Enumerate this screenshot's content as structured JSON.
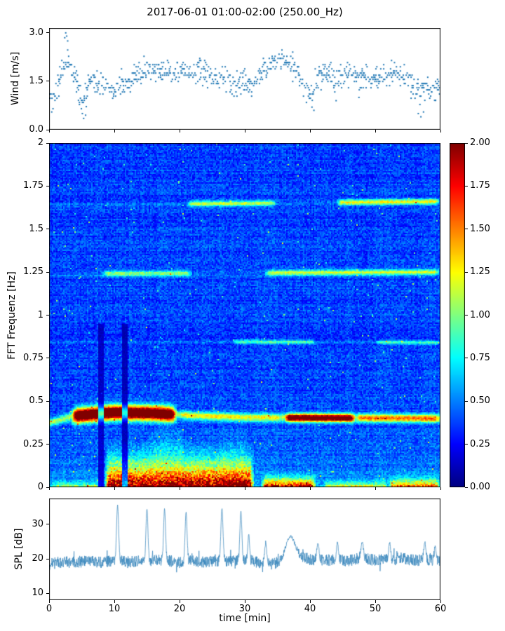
{
  "title": "2017-06-01 01:00-02:00 (250.00_Hz)",
  "chart_data": [
    {
      "type": "scatter",
      "ylabel": "Wind [m/s]",
      "xlim": [
        0,
        60
      ],
      "ylim": [
        0,
        3.15
      ],
      "yticks": [
        0,
        1.5,
        3
      ],
      "ytick_labels": [
        "0.0",
        "1.5",
        "3.0"
      ],
      "color": "#1f77b4",
      "column_step": 0.15,
      "spread": 0.19,
      "quantize": 0.065,
      "trend_x_step": 1,
      "trend_y": [
        0.9,
        1.2,
        1.8,
        2.2,
        1.6,
        0.9,
        1.3,
        1.5,
        1.4,
        1.3,
        1.2,
        1.3,
        1.4,
        1.6,
        1.8,
        1.8,
        1.9,
        1.8,
        1.8,
        1.7,
        1.8,
        1.8,
        1.7,
        1.8,
        1.8,
        1.7,
        1.6,
        1.5,
        1.5,
        1.4,
        1.5,
        1.4,
        1.6,
        1.9,
        2.0,
        2.2,
        2.1,
        2.0,
        1.9,
        1.4,
        1.0,
        1.6,
        1.8,
        1.7,
        1.6,
        1.7,
        1.6,
        1.7,
        1.6,
        1.7,
        1.6,
        1.7,
        1.6,
        1.8,
        1.7,
        1.6,
        1.3,
        1.2,
        1.3,
        1.2,
        1.3
      ],
      "outliers": [
        [
          2.4,
          2.85
        ],
        [
          2.55,
          3.0
        ],
        [
          2.7,
          2.9
        ],
        [
          2.85,
          2.75
        ],
        [
          5.1,
          0.5
        ],
        [
          5.3,
          0.35
        ],
        [
          5.6,
          0.45
        ],
        [
          0.4,
          0.55
        ],
        [
          40.3,
          0.7
        ],
        [
          40.6,
          0.6
        ],
        [
          56.6,
          0.5
        ],
        [
          57.0,
          0.4
        ],
        [
          57.4,
          0.55
        ],
        [
          44.0,
          0.9
        ],
        [
          47.5,
          1.0
        ]
      ]
    },
    {
      "type": "heatmap",
      "ylabel": "FFT Frequenz [Hz]",
      "xlim": [
        0,
        60
      ],
      "ylim": [
        0,
        2
      ],
      "clim": [
        0,
        2
      ],
      "colormap": "jet",
      "yticks": [
        0,
        0.25,
        0.5,
        0.75,
        1,
        1.25,
        1.5,
        1.75,
        2
      ],
      "ytick_labels": [
        "0",
        "0.25",
        "0.5",
        "0.75",
        "1",
        "1.25",
        "1.5",
        "1.75",
        "2"
      ],
      "colorbar_ticks": [
        0,
        0.25,
        0.5,
        0.75,
        1,
        1.25,
        1.5,
        1.75,
        2
      ],
      "colorbar_tick_labels": [
        "0.00",
        "0.25",
        "0.50",
        "0.75",
        "1.00",
        "1.25",
        "1.50",
        "1.75",
        "2.00"
      ],
      "background": {
        "base": 0.16,
        "row_amp": 0.1,
        "col_amp": 0.06,
        "cell_amp": 0.26,
        "low_boost": 0.2,
        "low_scale": 0.18,
        "speckle_prob": 0.004,
        "speckle_amp": 0.55
      },
      "hlines": [
        {
          "points": [
            [
              0,
              0.375
            ],
            [
              4,
              0.415
            ],
            [
              10,
              0.435
            ],
            [
              16,
              0.43
            ],
            [
              22,
              0.415
            ],
            [
              30,
              0.405
            ],
            [
              60,
              0.4
            ]
          ],
          "width": 0.016,
          "intensity": 0.7,
          "hot": [
            {
              "t0": 3.5,
              "t1": 19.5,
              "intensity": 1.6,
              "width": 0.028
            },
            {
              "t0": 20,
              "t1": 36,
              "intensity": 0.2,
              "width": 0.014
            },
            {
              "t0": 36,
              "t1": 47,
              "intensity": 1.3,
              "width": 0.012
            },
            {
              "t0": 47,
              "t1": 60,
              "intensity": 0.5,
              "width": 0.012
            }
          ]
        },
        {
          "points": [
            [
              0,
              1.24
            ],
            [
              60,
              1.25
            ]
          ],
          "width": 0.011,
          "intensity": 0.12,
          "hot": [
            {
              "t0": 8,
              "t1": 22,
              "intensity": 0.6,
              "width": 0.011
            },
            {
              "t0": 33,
              "t1": 60,
              "intensity": 0.75,
              "width": 0.011
            }
          ]
        },
        {
          "points": [
            [
              0,
              1.64
            ],
            [
              60,
              1.66
            ]
          ],
          "width": 0.011,
          "intensity": 0.1,
          "hot": [
            {
              "t0": 21,
              "t1": 35,
              "intensity": 0.7,
              "width": 0.011
            },
            {
              "t0": 44,
              "t1": 60,
              "intensity": 0.85,
              "width": 0.011
            }
          ]
        },
        {
          "points": [
            [
              0,
              0.85
            ],
            [
              60,
              0.84
            ]
          ],
          "width": 0.009,
          "intensity": 0.05,
          "hot": [
            {
              "t0": 28,
              "t1": 41,
              "intensity": 0.45,
              "width": 0.009
            },
            {
              "t0": 50,
              "t1": 60,
              "intensity": 0.4,
              "width": 0.009
            }
          ]
        }
      ],
      "low_band": [
        {
          "t0": 0,
          "t1": 8,
          "f_top": 0.05,
          "peak": 0.8
        },
        {
          "t0": 8.5,
          "t1": 31.5,
          "f_top": 0.3,
          "peak": 2.0
        },
        {
          "t0": 15,
          "t1": 21,
          "f_top": 0.38,
          "peak": 1.5
        },
        {
          "t0": 26,
          "t1": 30.5,
          "f_top": 0.34,
          "peak": 1.7
        },
        {
          "t0": 32.5,
          "t1": 41,
          "f_top": 0.1,
          "peak": 1.9
        },
        {
          "t0": 42,
          "t1": 52,
          "f_top": 0.06,
          "peak": 1.0
        },
        {
          "t0": 52,
          "t1": 60,
          "f_top": 0.09,
          "peak": 1.4
        }
      ],
      "dark_stripes": [
        {
          "t0": 7.6,
          "t1": 8.4,
          "factor": 0.35,
          "f_max": 0.95
        },
        {
          "t0": 11.2,
          "t1": 12.0,
          "factor": 0.3,
          "f_max": 0.95
        }
      ]
    },
    {
      "type": "line",
      "ylabel": "SPL [dB]",
      "xlabel": "time [min]",
      "xlim": [
        0,
        60
      ],
      "ylim": [
        8,
        37.5
      ],
      "yticks": [
        10,
        20,
        30
      ],
      "ytick_labels": [
        "10",
        "20",
        "30"
      ],
      "xticks": [
        0,
        10,
        20,
        30,
        40,
        50,
        60
      ],
      "xtick_labels": [
        "0",
        "10",
        "20",
        "30",
        "40",
        "50",
        "60"
      ],
      "color": "#3a87bd",
      "baseline_step": 2,
      "baseline": [
        18.5,
        19,
        19,
        19.5,
        19,
        19.5,
        19,
        19.5,
        19.5,
        19.5,
        19,
        19.5,
        19,
        19.5,
        19.5,
        19.8,
        19,
        18.5,
        19.2,
        20.8,
        19.8,
        19.5,
        19.8,
        19.5,
        20.3,
        19.5,
        19.8,
        20.3,
        19.5,
        19.8,
        19.5
      ],
      "noise_amp": 1.7,
      "spikes": [
        {
          "t": 10.5,
          "peak": 35.5,
          "width": 0.32
        },
        {
          "t": 15.0,
          "peak": 34.5,
          "width": 0.3
        },
        {
          "t": 17.7,
          "peak": 34.5,
          "width": 0.3
        },
        {
          "t": 21.0,
          "peak": 33.5,
          "width": 0.3
        },
        {
          "t": 26.5,
          "peak": 34.5,
          "width": 0.32
        },
        {
          "t": 29.4,
          "peak": 33.5,
          "width": 0.3
        },
        {
          "t": 30.6,
          "peak": 27.0,
          "width": 0.25
        },
        {
          "t": 33.2,
          "peak": 24.5,
          "width": 0.3
        },
        {
          "t": 37.0,
          "peak": 26.5,
          "width": 1.4
        },
        {
          "t": 41.2,
          "peak": 24.5,
          "width": 0.35
        },
        {
          "t": 44.2,
          "peak": 24.5,
          "width": 0.3
        },
        {
          "t": 48.0,
          "peak": 25.0,
          "width": 0.35
        },
        {
          "t": 52.2,
          "peak": 24.5,
          "width": 0.3
        },
        {
          "t": 57.6,
          "peak": 25.0,
          "width": 0.3
        },
        {
          "t": 59.2,
          "peak": 24.0,
          "width": 0.25
        }
      ]
    }
  ]
}
